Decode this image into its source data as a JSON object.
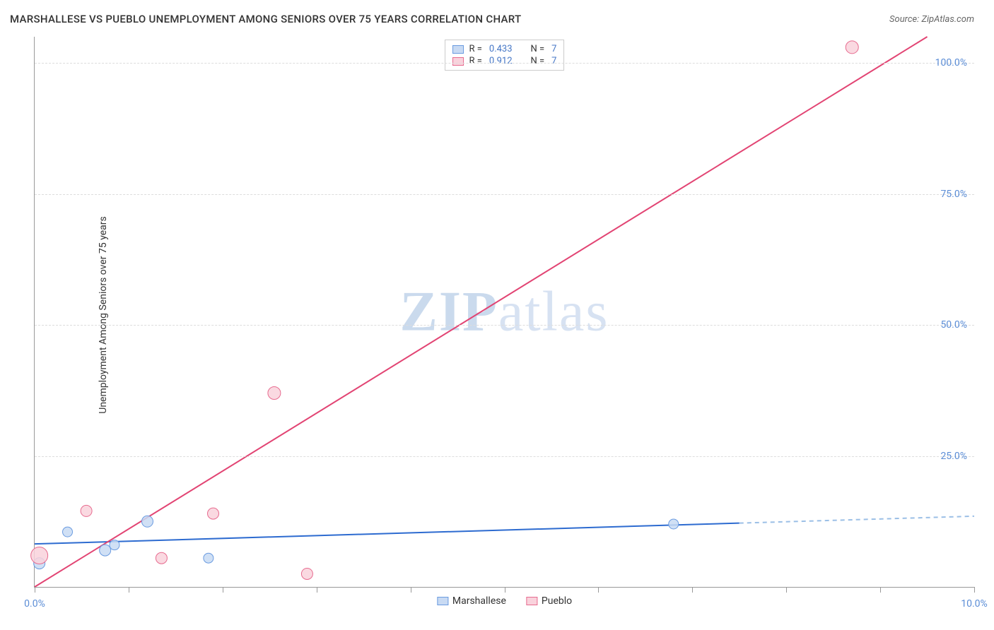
{
  "chart": {
    "type": "scatter-with-regression",
    "title": "MARSHALLESE VS PUEBLO UNEMPLOYMENT AMONG SENIORS OVER 75 YEARS CORRELATION CHART",
    "source_label": "Source:",
    "source_name": "ZipAtlas.com",
    "y_axis_label": "Unemployment Among Seniors over 75 years",
    "watermark": "ZIPatlas",
    "background_color": "#ffffff",
    "grid_color": "#dddddd",
    "axis_color": "#999999",
    "tick_label_color": "#5b8dd6",
    "text_color": "#333333",
    "xlim": [
      0,
      10
    ],
    "ylim": [
      0,
      105
    ],
    "x_ticks": [
      0,
      1,
      2,
      3,
      4,
      5,
      6,
      7,
      8,
      9,
      10
    ],
    "x_tick_labels": {
      "0": "0.0%",
      "10": "10.0%"
    },
    "y_ticks": [
      25,
      50,
      75,
      100
    ],
    "y_tick_labels": [
      "25.0%",
      "50.0%",
      "75.0%",
      "100.0%"
    ],
    "legend_top": [
      {
        "color_fill": "#c8daf3",
        "color_border": "#6a9be0",
        "r_label": "R =",
        "r_value": "0.433",
        "n_label": "N =",
        "n_value": "7"
      },
      {
        "color_fill": "#f9d2dc",
        "color_border": "#e76b8f",
        "r_label": "R =",
        "r_value": "0.912",
        "n_label": "N =",
        "n_value": "7"
      }
    ],
    "legend_bottom": [
      {
        "color_fill": "#c8daf3",
        "color_border": "#6a9be0",
        "label": "Marshallese"
      },
      {
        "color_fill": "#f9d2dc",
        "color_border": "#e76b8f",
        "label": "Pueblo"
      }
    ],
    "series": [
      {
        "name": "Marshallese",
        "point_fill": "#c8daf3",
        "point_border": "#6a9be0",
        "point_radius": 7,
        "line_color": "#2d6bd0",
        "line_width": 2,
        "dash_color": "#9bbfe6",
        "regression": {
          "x1": 0,
          "y1": 8.2,
          "x2": 10,
          "y2": 13.5,
          "solid_to_x": 7.5
        },
        "points": [
          {
            "x": 0.05,
            "y": 4.5,
            "r": 8
          },
          {
            "x": 0.35,
            "y": 10.5,
            "r": 7
          },
          {
            "x": 0.75,
            "y": 7.0,
            "r": 8
          },
          {
            "x": 0.85,
            "y": 8.0,
            "r": 7
          },
          {
            "x": 1.2,
            "y": 12.5,
            "r": 8
          },
          {
            "x": 1.85,
            "y": 5.5,
            "r": 7
          },
          {
            "x": 6.8,
            "y": 12.0,
            "r": 7
          }
        ]
      },
      {
        "name": "Pueblo",
        "point_fill": "#f9d2dc",
        "point_border": "#e76b8f",
        "point_radius": 8,
        "line_color": "#e24473",
        "line_width": 2,
        "regression": {
          "x1": 0,
          "y1": 0,
          "x2": 9.5,
          "y2": 105,
          "solid_to_x": 9.5
        },
        "points": [
          {
            "x": 0.05,
            "y": 6.0,
            "r": 12
          },
          {
            "x": 0.55,
            "y": 14.5,
            "r": 8
          },
          {
            "x": 1.35,
            "y": 5.5,
            "r": 8
          },
          {
            "x": 1.9,
            "y": 14.0,
            "r": 8
          },
          {
            "x": 2.55,
            "y": 37.0,
            "r": 9
          },
          {
            "x": 2.9,
            "y": 2.5,
            "r": 8
          },
          {
            "x": 8.7,
            "y": 103.0,
            "r": 9
          }
        ]
      }
    ]
  }
}
